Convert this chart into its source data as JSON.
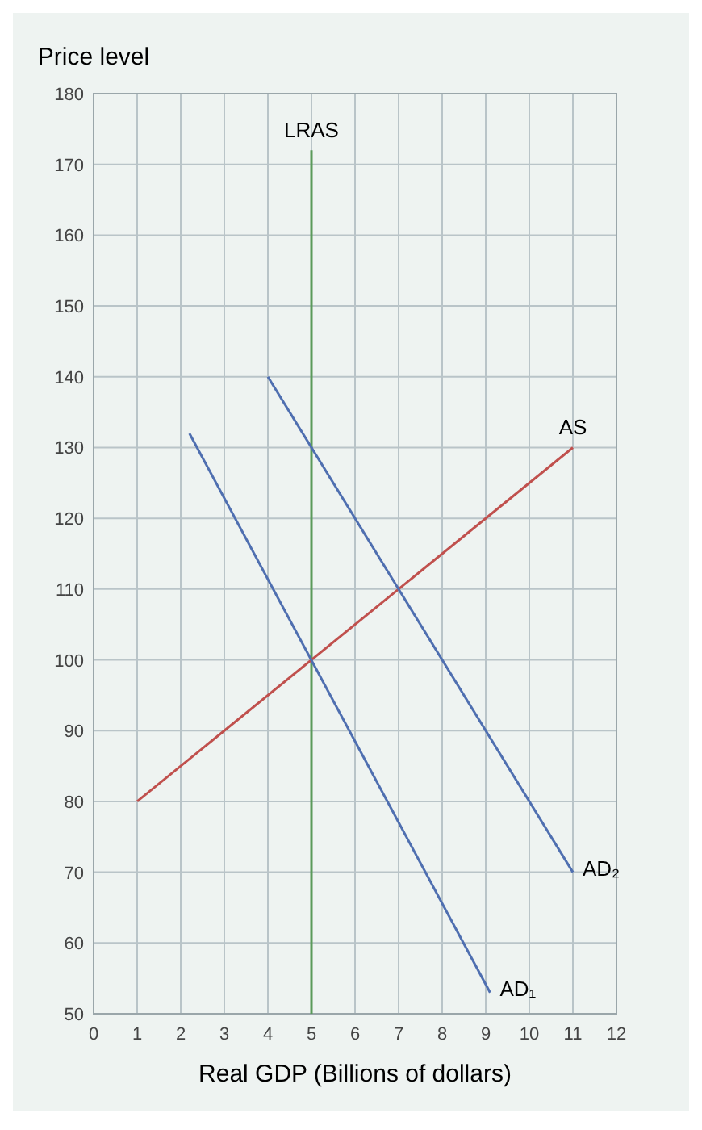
{
  "chart_data": {
    "type": "line",
    "xlabel": "Real GDP (Billions of dollars)",
    "ylabel": "Price level",
    "xlim": [
      0,
      12
    ],
    "xticks": [
      0,
      1,
      2,
      3,
      4,
      5,
      6,
      7,
      8,
      9,
      10,
      11,
      12
    ],
    "ylim": [
      50,
      180
    ],
    "yticks": [
      50,
      60,
      70,
      80,
      90,
      100,
      110,
      120,
      130,
      140,
      150,
      160,
      170,
      180
    ],
    "grid": true,
    "marker": "none",
    "series": [
      {
        "name": "LRAS",
        "color": "#5a9a5a",
        "x": [
          5,
          5
        ],
        "values": [
          50,
          172
        ]
      },
      {
        "name": "AS",
        "color": "#c0504d",
        "x": [
          1,
          11
        ],
        "values": [
          80,
          130
        ]
      },
      {
        "name": "AD₁",
        "color": "#4f6fb0",
        "x": [
          2.2,
          9.1
        ],
        "values": [
          132,
          53
        ]
      },
      {
        "name": "AD₂",
        "color": "#4f6fb0",
        "x": [
          4,
          11
        ],
        "values": [
          140,
          70
        ]
      }
    ]
  }
}
